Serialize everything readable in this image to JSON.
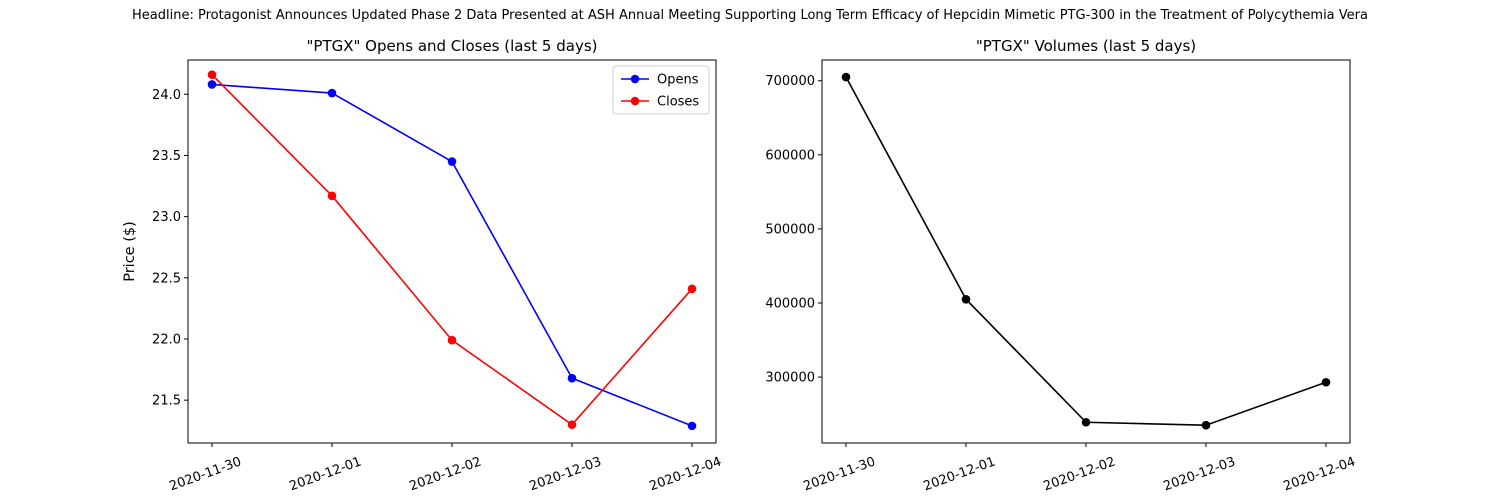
{
  "headline": "Headline: Protagonist Announces Updated Phase 2 Data Presented at ASH Annual Meeting Supporting Long Term Efficacy of Hepcidin Mimetic PTG-300 in the Treatment of Polycythemia Vera",
  "chart_data": [
    {
      "type": "line",
      "title": "\"PTGX\" Opens and Closes (last 5 days)",
      "xlabel": "",
      "ylabel": "Price ($)",
      "categories": [
        "2020-11-30",
        "2020-12-01",
        "2020-12-02",
        "2020-12-03",
        "2020-12-04"
      ],
      "ylim": [
        21.15,
        24.28
      ],
      "yticks": [
        21.5,
        22.0,
        22.5,
        23.0,
        23.5,
        24.0
      ],
      "ytick_labels": [
        "21.5",
        "22.0",
        "22.5",
        "23.0",
        "23.5",
        "24.0"
      ],
      "grid": false,
      "legend": "top-right",
      "series": [
        {
          "name": "Opens",
          "color": "#0000ff",
          "values": [
            24.08,
            24.01,
            23.45,
            21.68,
            21.29
          ]
        },
        {
          "name": "Closes",
          "color": "#ff0000",
          "values": [
            24.16,
            23.17,
            21.99,
            21.3,
            22.41
          ]
        }
      ]
    },
    {
      "type": "line",
      "title": "\"PTGX\" Volumes (last 5 days)",
      "xlabel": "",
      "ylabel": "",
      "categories": [
        "2020-11-30",
        "2020-12-01",
        "2020-12-02",
        "2020-12-03",
        "2020-12-04"
      ],
      "ylim": [
        211000,
        728000
      ],
      "yticks": [
        300000,
        400000,
        500000,
        600000,
        700000
      ],
      "ytick_labels": [
        "300000",
        "400000",
        "500000",
        "600000",
        "700000"
      ],
      "grid": false,
      "series": [
        {
          "color": "#000000",
          "values": [
            705000,
            405000,
            239000,
            235000,
            293000
          ]
        }
      ]
    }
  ]
}
